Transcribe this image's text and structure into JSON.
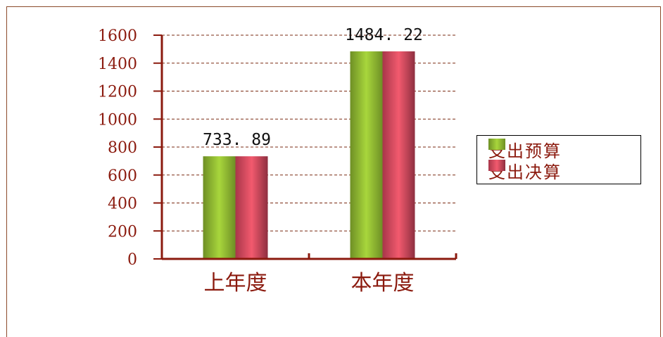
{
  "chart_data": {
    "type": "bar",
    "categories": [
      "上年度",
      "本年度"
    ],
    "series": [
      {
        "name": "支出预算",
        "values": [
          733.89,
          1484.22
        ],
        "color": "#8fbe32"
      },
      {
        "name": "支出决算",
        "values": [
          733.89,
          1484.22
        ],
        "color": "#d94a5e"
      }
    ],
    "data_labels": [
      "733. 89",
      "1484. 22"
    ],
    "y_ticks": [
      "0",
      "200",
      "400",
      "600",
      "800",
      "1000",
      "1200",
      "1400",
      "1600"
    ],
    "ylim": [
      0,
      1600
    ],
    "grid": true,
    "legend_position": "right",
    "axis_color": "#8b1a0e"
  }
}
